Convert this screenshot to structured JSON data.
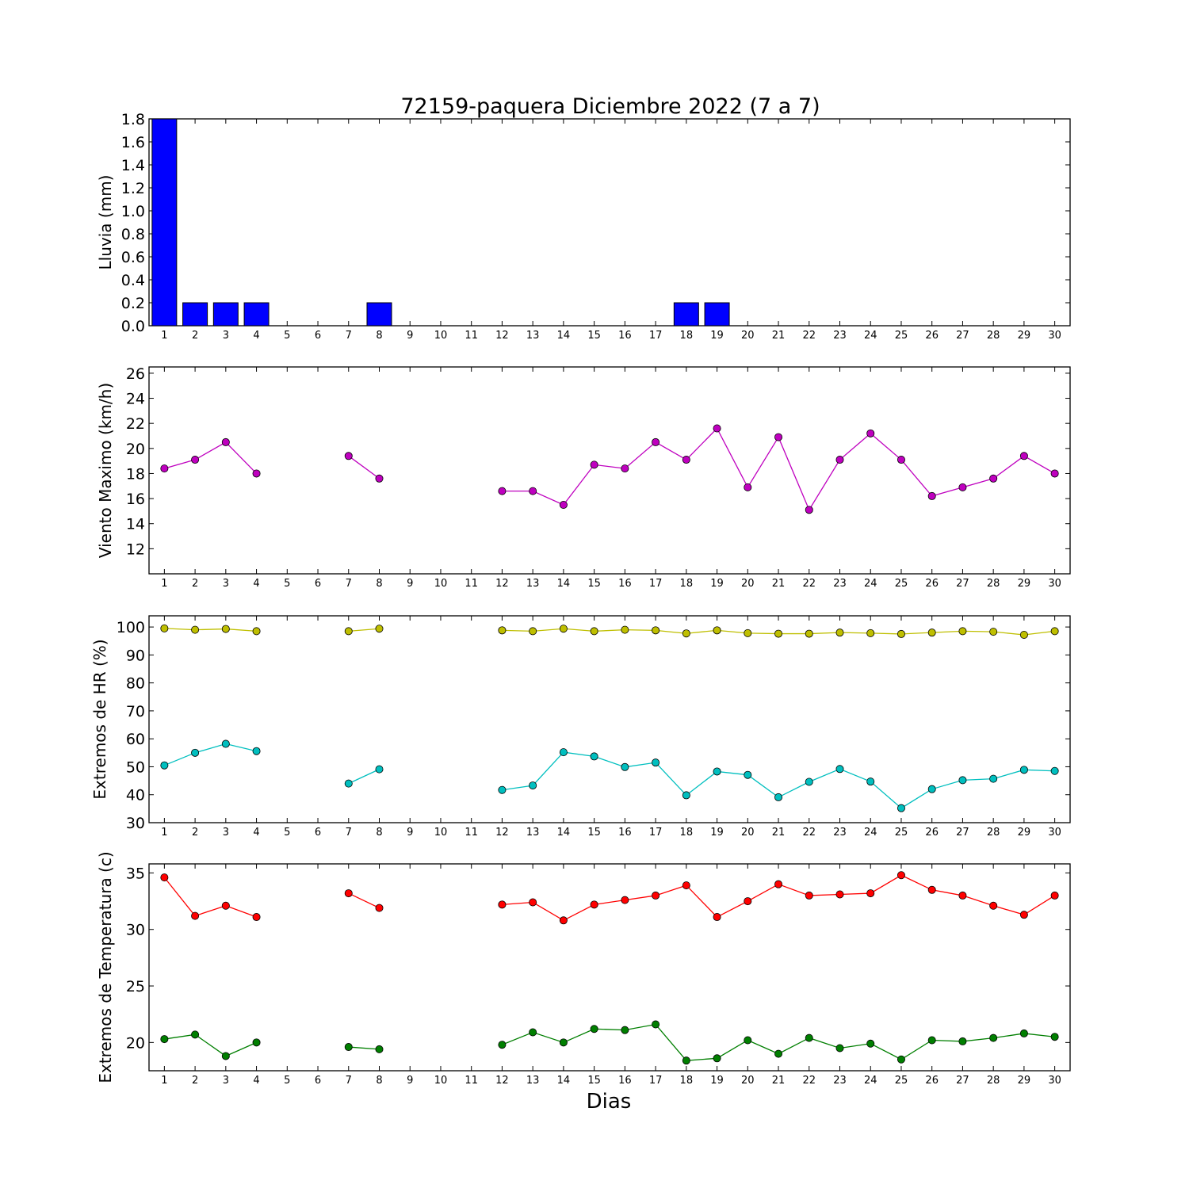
{
  "title": "72159-paquera Diciembre 2022  (7 a 7)",
  "xlabel": "Dias",
  "chart_data": [
    {
      "type": "bar",
      "ylabel": "Lluvia (mm)",
      "ylim": [
        0,
        1.8
      ],
      "yticks": [
        "0.0",
        "0.2",
        "0.4",
        "0.6",
        "0.8",
        "1.0",
        "1.2",
        "1.4",
        "1.6",
        "1.8"
      ],
      "xlim": [
        0.5,
        30.5
      ],
      "x": [
        1,
        2,
        3,
        4,
        5,
        6,
        7,
        8,
        9,
        10,
        11,
        12,
        13,
        14,
        15,
        16,
        17,
        18,
        19,
        20,
        21,
        22,
        23,
        24,
        25,
        26,
        27,
        28,
        29,
        30
      ],
      "series": [
        {
          "color": "#0000ff",
          "values": [
            1.8,
            0.2,
            0.2,
            0.2,
            0,
            0,
            0,
            0.2,
            0,
            0,
            0,
            0,
            0,
            0,
            0,
            0,
            0,
            0.2,
            0.2,
            0,
            0,
            0,
            0,
            0,
            0,
            0,
            0,
            0,
            0,
            0
          ]
        }
      ]
    },
    {
      "type": "line",
      "ylabel": "Viento Maximo (km/h)",
      "ylim": [
        10,
        26.5
      ],
      "yticks": [
        "12",
        "14",
        "16",
        "18",
        "20",
        "22",
        "24",
        "26"
      ],
      "xlim": [
        0.5,
        30.5
      ],
      "x": [
        1,
        2,
        3,
        4,
        5,
        6,
        7,
        8,
        9,
        10,
        11,
        12,
        13,
        14,
        15,
        16,
        17,
        18,
        19,
        20,
        21,
        22,
        23,
        24,
        25,
        26,
        27,
        28,
        29,
        30
      ],
      "series": [
        {
          "color": "#bf00bf",
          "values": [
            18.4,
            19.1,
            20.5,
            18.0,
            null,
            null,
            19.4,
            17.6,
            null,
            null,
            null,
            16.6,
            16.6,
            15.5,
            18.7,
            18.4,
            20.5,
            19.1,
            21.6,
            16.9,
            20.9,
            15.1,
            19.1,
            21.2,
            19.1,
            16.2,
            16.9,
            17.6,
            19.4,
            18.0
          ]
        }
      ]
    },
    {
      "type": "line",
      "ylabel": "Extremos de HR (%)",
      "ylim": [
        30,
        104
      ],
      "yticks": [
        "30",
        "40",
        "50",
        "60",
        "70",
        "80",
        "90",
        "100"
      ],
      "xlim": [
        0.5,
        30.5
      ],
      "x": [
        1,
        2,
        3,
        4,
        5,
        6,
        7,
        8,
        9,
        10,
        11,
        12,
        13,
        14,
        15,
        16,
        17,
        18,
        19,
        20,
        21,
        22,
        23,
        24,
        25,
        26,
        27,
        28,
        29,
        30
      ],
      "series": [
        {
          "color": "#bfbf00",
          "values": [
            99.5,
            99.0,
            99.3,
            98.5,
            null,
            null,
            98.5,
            99.4,
            null,
            null,
            null,
            98.8,
            98.5,
            99.4,
            98.5,
            99.0,
            98.8,
            97.7,
            98.8,
            97.8,
            97.6,
            97.6,
            98.0,
            97.8,
            97.5,
            98.0,
            98.5,
            98.3,
            97.2,
            98.5
          ]
        },
        {
          "color": "#00bfbf",
          "values": [
            50.5,
            55.0,
            58.2,
            55.6,
            null,
            null,
            44.0,
            49.1,
            null,
            null,
            null,
            41.7,
            43.3,
            55.2,
            53.7,
            49.9,
            51.5,
            39.8,
            48.3,
            47.1,
            39.1,
            44.6,
            49.2,
            44.7,
            35.2,
            42.0,
            45.2,
            45.7,
            48.9,
            48.5
          ]
        }
      ]
    },
    {
      "type": "line",
      "ylabel": "Extremos de Temperatura (c)",
      "ylim": [
        17.5,
        35.8
      ],
      "yticks": [
        "20",
        "25",
        "30",
        "35"
      ],
      "xlim": [
        0.5,
        30.5
      ],
      "x": [
        1,
        2,
        3,
        4,
        5,
        6,
        7,
        8,
        9,
        10,
        11,
        12,
        13,
        14,
        15,
        16,
        17,
        18,
        19,
        20,
        21,
        22,
        23,
        24,
        25,
        26,
        27,
        28,
        29,
        30
      ],
      "series": [
        {
          "color": "#ff0000",
          "values": [
            34.6,
            31.2,
            32.1,
            31.1,
            null,
            null,
            33.2,
            31.9,
            null,
            null,
            null,
            32.2,
            32.4,
            30.8,
            32.2,
            32.6,
            33.0,
            33.9,
            31.1,
            32.5,
            34.0,
            33.0,
            33.1,
            33.2,
            34.8,
            33.5,
            33.0,
            32.1,
            31.3,
            33.0
          ]
        },
        {
          "color": "#007f00",
          "values": [
            20.3,
            20.7,
            18.8,
            20.0,
            null,
            null,
            19.6,
            19.4,
            null,
            null,
            null,
            19.8,
            20.9,
            20.0,
            21.2,
            21.1,
            21.6,
            18.4,
            18.6,
            20.2,
            19.0,
            20.4,
            19.5,
            19.9,
            18.5,
            20.2,
            20.1,
            20.4,
            20.8,
            20.5
          ]
        }
      ]
    }
  ]
}
